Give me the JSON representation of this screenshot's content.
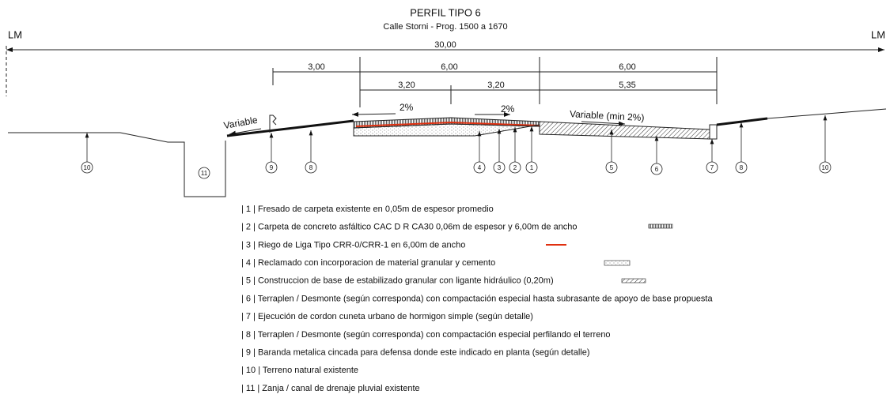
{
  "title": "PERFIL TIPO 6",
  "subtitle": "Calle Storni - Prog. 1500 a 1670",
  "lm_left": "LM",
  "lm_right": "LM",
  "dimensions": [
    "30,00",
    "3,00",
    "6,00",
    "6,00",
    "3,20",
    "3,20",
    "5,35"
  ],
  "slopes": [
    "Variable",
    "2%",
    "2%",
    "Variable (min 2%)"
  ],
  "callouts": [
    "10",
    "11",
    "9",
    "8",
    "4",
    "3",
    "2",
    "1",
    "5",
    "6",
    "7",
    "8",
    "10"
  ],
  "legend": [
    "| 1 | Fresado de carpeta existente en 0,05m de espesor promedio",
    "| 2 | Carpeta de concreto asfáltico CAC D R CA30 0,06m de espesor y 6,00m de ancho",
    "| 3 | Riego de Liga Tipo CRR-0/CRR-1 en 6,00m de ancho",
    "| 4 | Reclamado con incorporacion de material granular y cemento",
    "| 5 | Construccion de base de estabilizado granular con ligante hidráulico (0,20m)",
    "| 6 | Terraplen / Desmonte (según corresponda) con compactación especial hasta subrasante de apoyo de base propuesta",
    "| 7 | Ejecución de cordon cuneta urbano de hormigon simple (según detalle)",
    "| 8 | Terraplen / Desmonte (según corresponda)  con compactación especial perfilando el terreno",
    "| 9 | Baranda metalica cincada para defensa donde este indicado en planta (según detalle)",
    "| 10 | Terreno natural existente",
    "| 11 | Zanja / canal de drenaje pluvial existente"
  ]
}
